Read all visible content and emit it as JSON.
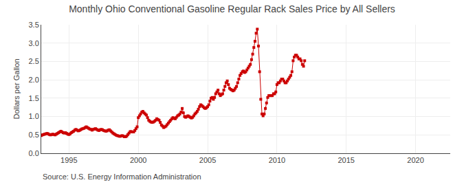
{
  "chart_data": {
    "type": "line",
    "title": "Monthly Ohio Conventional Gasoline Regular Rack Sales Price by All Sellers",
    "ylabel": "Dollars per Gallon",
    "annotations": [
      "Source: U.S. Energy Information Administration"
    ],
    "color": "#cc0000",
    "marker": "square",
    "line_style": "solid",
    "grid": true,
    "xlim": [
      1993.0,
      2022.5
    ],
    "ylim": [
      0.0,
      3.5
    ],
    "xticks": [
      1995,
      2000,
      2005,
      2010,
      2015,
      2020
    ],
    "yticks": [
      {
        "value": 0.0,
        "label": "0.0"
      },
      0.5,
      {
        "value": 1.0,
        "label": "1.0"
      },
      1.5,
      {
        "value": 2.0,
        "label": "2.0"
      },
      2.5,
      {
        "value": 3.0,
        "label": "3.0"
      },
      3.5
    ],
    "x": [
      1993.0,
      1993.083,
      1993.167,
      1993.25,
      1993.333,
      1993.417,
      1993.5,
      1993.583,
      1993.667,
      1993.75,
      1993.833,
      1993.917,
      1994.0,
      1994.083,
      1994.167,
      1994.25,
      1994.333,
      1994.417,
      1994.5,
      1994.583,
      1994.667,
      1994.75,
      1994.833,
      1994.917,
      1995.0,
      1995.083,
      1995.167,
      1995.25,
      1995.333,
      1995.417,
      1995.5,
      1995.583,
      1995.667,
      1995.75,
      1995.833,
      1995.917,
      1996.0,
      1996.083,
      1996.167,
      1996.25,
      1996.333,
      1996.417,
      1996.5,
      1996.583,
      1996.667,
      1996.75,
      1996.833,
      1996.917,
      1997.0,
      1997.083,
      1997.167,
      1997.25,
      1997.333,
      1997.417,
      1997.5,
      1997.583,
      1997.667,
      1997.75,
      1997.833,
      1997.917,
      1998.0,
      1998.083,
      1998.167,
      1998.25,
      1998.333,
      1998.417,
      1998.5,
      1998.583,
      1998.667,
      1998.75,
      1998.833,
      1998.917,
      1999.0,
      1999.083,
      1999.167,
      1999.25,
      1999.333,
      1999.417,
      1999.5,
      1999.583,
      1999.667,
      1999.75,
      1999.833,
      1999.917,
      2000.0,
      2000.083,
      2000.167,
      2000.25,
      2000.333,
      2000.417,
      2000.5,
      2000.583,
      2000.667,
      2000.75,
      2000.833,
      2000.917,
      2001.0,
      2001.083,
      2001.167,
      2001.25,
      2001.333,
      2001.417,
      2001.5,
      2001.583,
      2001.667,
      2001.75,
      2001.833,
      2001.917,
      2002.0,
      2002.083,
      2002.167,
      2002.25,
      2002.333,
      2002.417,
      2002.5,
      2002.583,
      2002.667,
      2002.75,
      2002.833,
      2002.917,
      2003.0,
      2003.083,
      2003.167,
      2003.25,
      2003.333,
      2003.417,
      2003.5,
      2003.583,
      2003.667,
      2003.75,
      2003.833,
      2003.917,
      2004.0,
      2004.083,
      2004.167,
      2004.25,
      2004.333,
      2004.417,
      2004.5,
      2004.583,
      2004.667,
      2004.75,
      2004.833,
      2004.917,
      2005.0,
      2005.083,
      2005.167,
      2005.25,
      2005.333,
      2005.417,
      2005.5,
      2005.583,
      2005.667,
      2005.75,
      2005.833,
      2005.917,
      2006.0,
      2006.083,
      2006.167,
      2006.25,
      2006.333,
      2006.417,
      2006.5,
      2006.583,
      2006.667,
      2006.75,
      2006.833,
      2006.917,
      2007.0,
      2007.083,
      2007.167,
      2007.25,
      2007.333,
      2007.417,
      2007.5,
      2007.583,
      2007.667,
      2007.75,
      2007.833,
      2007.917,
      2008.0,
      2008.083,
      2008.167,
      2008.25,
      2008.333,
      2008.417,
      2008.5,
      2008.583,
      2008.667,
      2008.75,
      2008.833,
      2008.917,
      2009.0,
      2009.083,
      2009.167,
      2009.25,
      2009.333,
      2009.417,
      2009.5,
      2009.583,
      2009.667,
      2009.75,
      2009.833,
      2009.917,
      2010.0,
      2010.083,
      2010.167,
      2010.25,
      2010.333,
      2010.417,
      2010.5,
      2010.583,
      2010.667,
      2010.75,
      2010.833,
      2010.917,
      2011.0,
      2011.083,
      2011.167,
      2011.25,
      2011.333,
      2011.417,
      2011.5,
      2011.583,
      2011.667,
      2011.75,
      2011.833,
      2011.917,
      2012.0
    ],
    "values": [
      0.48,
      0.5,
      0.51,
      0.52,
      0.53,
      0.54,
      0.53,
      0.51,
      0.5,
      0.51,
      0.52,
      0.51,
      0.5,
      0.52,
      0.54,
      0.56,
      0.58,
      0.6,
      0.58,
      0.56,
      0.55,
      0.56,
      0.54,
      0.52,
      0.51,
      0.53,
      0.56,
      0.58,
      0.6,
      0.63,
      0.65,
      0.63,
      0.61,
      0.62,
      0.64,
      0.66,
      0.67,
      0.68,
      0.7,
      0.72,
      0.7,
      0.68,
      0.66,
      0.65,
      0.63,
      0.65,
      0.66,
      0.67,
      0.65,
      0.63,
      0.62,
      0.64,
      0.65,
      0.64,
      0.62,
      0.61,
      0.6,
      0.61,
      0.63,
      0.64,
      0.61,
      0.58,
      0.55,
      0.53,
      0.51,
      0.49,
      0.48,
      0.47,
      0.46,
      0.47,
      0.48,
      0.47,
      0.45,
      0.45,
      0.47,
      0.51,
      0.55,
      0.59,
      0.59,
      0.58,
      0.58,
      0.62,
      0.67,
      0.72,
      0.97,
      1.02,
      1.07,
      1.12,
      1.14,
      1.1,
      1.07,
      1.04,
      0.97,
      0.9,
      0.87,
      0.85,
      0.84,
      0.85,
      0.87,
      0.9,
      0.94,
      0.92,
      0.9,
      0.84,
      0.77,
      0.74,
      0.7,
      0.72,
      0.74,
      0.78,
      0.82,
      0.86,
      0.9,
      0.94,
      0.97,
      0.95,
      0.94,
      0.98,
      1.02,
      1.04,
      1.07,
      1.12,
      1.22,
      1.1,
      1.0,
      0.98,
      1.0,
      1.02,
      1.0,
      0.98,
      0.96,
      0.98,
      1.02,
      1.07,
      1.1,
      1.14,
      1.2,
      1.27,
      1.32,
      1.3,
      1.27,
      1.24,
      1.22,
      1.24,
      1.27,
      1.32,
      1.42,
      1.5,
      1.52,
      1.47,
      1.52,
      1.62,
      1.67,
      1.72,
      1.62,
      1.57,
      1.6,
      1.62,
      1.72,
      1.82,
      1.92,
      1.97,
      1.87,
      1.77,
      1.74,
      1.72,
      1.7,
      1.72,
      1.77,
      1.82,
      1.92,
      2.02,
      2.12,
      2.17,
      2.22,
      2.24,
      2.2,
      2.22,
      2.27,
      2.32,
      2.37,
      2.42,
      2.55,
      2.7,
      2.88,
      3.05,
      3.27,
      3.38,
      2.92,
      2.22,
      1.47,
      1.07,
      1.02,
      1.07,
      1.22,
      1.37,
      1.52,
      1.57,
      1.57,
      1.57,
      1.57,
      1.62,
      1.62,
      1.67,
      1.87,
      1.92,
      1.92,
      1.97,
      2.02,
      2.02,
      1.97,
      1.92,
      1.92,
      1.97,
      2.02,
      2.07,
      2.12,
      2.22,
      2.52,
      2.62,
      2.67,
      2.67,
      2.62,
      2.57,
      2.57,
      2.52,
      2.42,
      2.37,
      2.52
    ]
  }
}
